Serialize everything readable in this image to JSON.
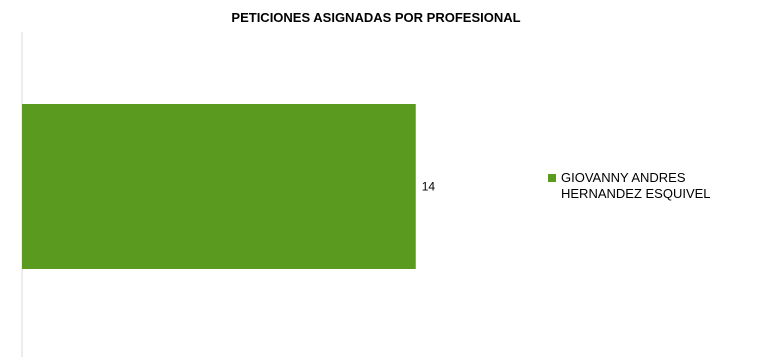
{
  "chart_data": {
    "type": "bar",
    "orientation": "horizontal",
    "title": "PETICIONES ASIGNADAS POR PROFESIONAL",
    "categories": [
      ""
    ],
    "series": [
      {
        "name": "GIOVANNY ANDRES HERNANDEZ ESQUIVEL",
        "name_lines": [
          "GIOVANNY ANDRES",
          "HERNANDEZ ESQUIVEL"
        ],
        "values": [
          14
        ],
        "color": "#5a9a1e"
      }
    ],
    "data_labels": [
      "14"
    ],
    "xlim": [
      0,
      16
    ],
    "grid": false,
    "legend": "right"
  }
}
